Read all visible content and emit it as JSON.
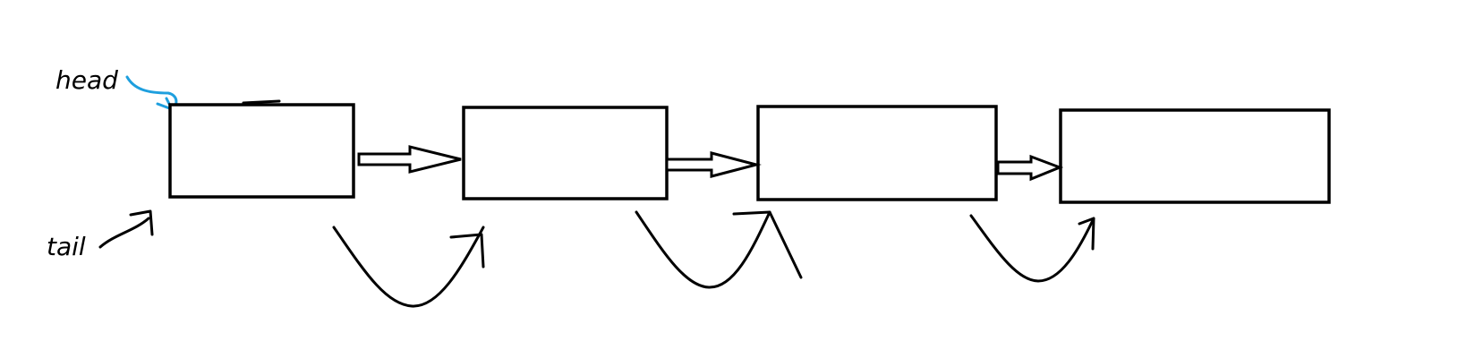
{
  "labels": {
    "head": "head",
    "tail": "tail"
  },
  "colors": {
    "ink": "#000000",
    "head_pointer": "#1e9fde"
  },
  "nodes": [
    {
      "id": "node-1"
    },
    {
      "id": "node-2"
    },
    {
      "id": "node-3"
    },
    {
      "id": "node-4"
    }
  ]
}
